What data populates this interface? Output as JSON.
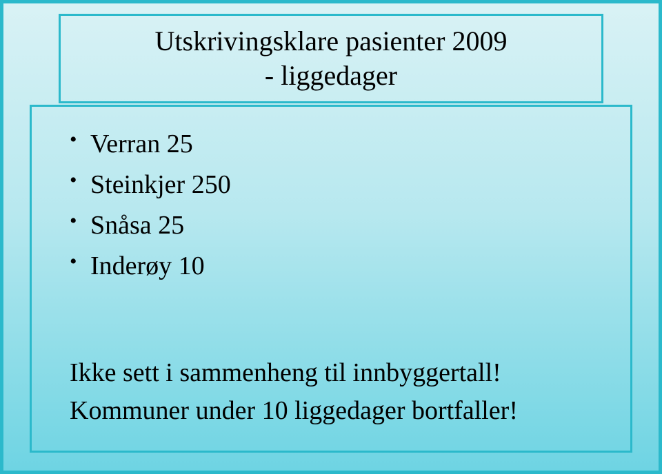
{
  "slide": {
    "background_gradient": [
      "#d9f2f5",
      "#b7e8ef",
      "#8fdde8",
      "#6ed4e3"
    ],
    "border_color": "#2bb9cb",
    "border_width": 5,
    "title": {
      "line1": "Utskrivingsklare pasienter 2009",
      "line2": "- liggedager",
      "font_family": "Georgia",
      "font_size": 40,
      "color": "#000000",
      "box_border_color": "#2bb9cb",
      "box_border_width": 3
    },
    "body": {
      "box_border_color": "#2bb9cb",
      "box_border_width": 3,
      "bullets": [
        "Verran 25",
        "Steinkjer 250",
        "Snåsa 25",
        "Inderøy 10"
      ],
      "bullet_font_size": 38,
      "bullet_color": "#000000",
      "footer_lines": [
        "Ikke sett i sammenheng til innbyggertall!",
        "Kommuner under 10 liggedager bortfaller!"
      ],
      "footer_font_size": 38,
      "footer_color": "#000000"
    }
  }
}
